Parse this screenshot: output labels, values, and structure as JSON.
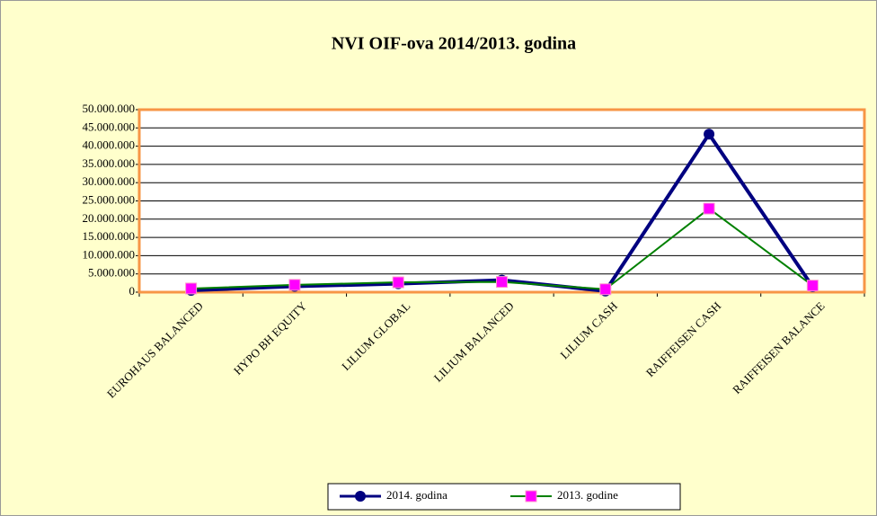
{
  "chart_data": {
    "type": "line",
    "title": "NVI OIF-ova 2014/2013. godina",
    "categories": [
      "EUROHAUS BALANCED",
      "HYPO BH EQUITY",
      "LILIUM GLOBAL",
      "LILIUM BALANCED",
      "LILIUM CASH",
      "RAIFFEISEN CASH",
      "RAIFFEISEN BALANCE"
    ],
    "series": [
      {
        "name": "2014. godina",
        "color": "#000080",
        "marker": "circle",
        "values": [
          500000,
          1600000,
          2300000,
          3300000,
          300000,
          43300000,
          1500000
        ]
      },
      {
        "name": "2013. godine",
        "color": "#008000",
        "marker": "square",
        "marker_color": "#ff00ff",
        "values": [
          1000000,
          2000000,
          2700000,
          2800000,
          800000,
          22900000,
          1800000
        ]
      }
    ],
    "ylim": [
      0,
      50000000
    ],
    "yticks": [
      0,
      {
        "value": 5000000,
        "label": "5.000.000"
      },
      {
        "value": 10000000,
        "label": "10.000.000"
      },
      {
        "value": 15000000,
        "label": "15.000.000"
      },
      {
        "value": 20000000,
        "label": "20.000.000"
      },
      {
        "value": 25000000,
        "label": "25.000.000"
      },
      {
        "value": 30000000,
        "label": "30.000.000"
      },
      {
        "value": 35000000,
        "label": "35.000.000"
      },
      {
        "value": 40000000,
        "label": "40.000.000"
      },
      {
        "value": 45000000,
        "label": "45.000.000"
      },
      {
        "value": 50000000,
        "label": "50.000.000"
      }
    ],
    "grid": true,
    "legend": "bottom"
  }
}
